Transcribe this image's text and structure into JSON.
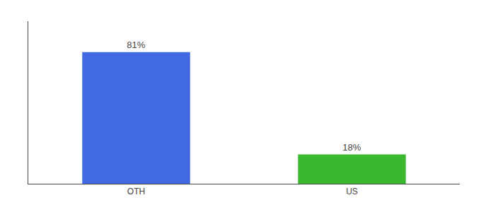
{
  "chart_data": {
    "type": "bar",
    "categories": [
      "OTH",
      "US"
    ],
    "values": [
      81,
      18
    ],
    "value_labels": [
      "81%",
      "18%"
    ],
    "colors": [
      "#4169e1",
      "#3cb830"
    ],
    "ylim": [
      0,
      100
    ],
    "data_labels": true,
    "tick_labels": "x",
    "grid": false
  }
}
